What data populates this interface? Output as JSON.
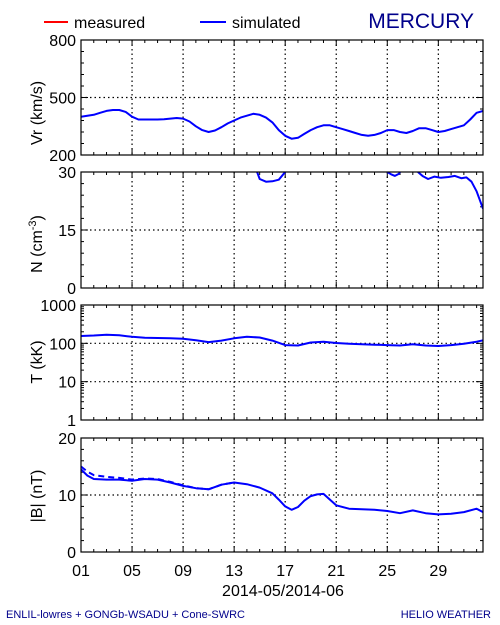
{
  "chart_data": {
    "type": "line",
    "planet_title": "MERCURY",
    "legend": [
      {
        "label": "measured",
        "color": "#ff0000"
      },
      {
        "label": "simulated",
        "color": "#0000ff"
      }
    ],
    "x_tick_labels": [
      "01",
      "05",
      "09",
      "13",
      "17",
      "21",
      "25",
      "29"
    ],
    "x_axis_label": "2014-05/2014-06",
    "x_range_days": [
      1,
      32.5
    ],
    "footer_left": "ENLIL-lowres + GONGb-WSADU + Cone-SWRC",
    "footer_right": "HELIO  WEATHER",
    "panels": [
      {
        "ylabel": "Vr (km/s)",
        "ylim": [
          200,
          800
        ],
        "yscale": "linear",
        "yticks": [
          "200",
          "500",
          "800"
        ],
        "ytick_values": [
          200,
          500,
          800
        ],
        "gridlines": [
          500
        ],
        "series": [
          {
            "color": "#0000ff",
            "style": "solid",
            "x": [
              1.0,
              1.5,
              2.0,
              2.5,
              3.0,
              3.5,
              4.0,
              4.5,
              5.0,
              5.5,
              6.0,
              6.5,
              7.0,
              7.5,
              8.0,
              8.5,
              9.0,
              9.5,
              10.0,
              10.5,
              11.0,
              11.5,
              12.0,
              12.5,
              13.0,
              13.5,
              14.0,
              14.5,
              15.0,
              15.5,
              16.0,
              16.5,
              17.0,
              17.5,
              18.0,
              18.5,
              19.0,
              19.5,
              20.0,
              20.5,
              21.0,
              21.5,
              22.0,
              22.5,
              23.0,
              23.5,
              24.0,
              24.5,
              25.0,
              25.5,
              26.0,
              26.5,
              27.0,
              27.5,
              28.0,
              28.5,
              29.0,
              29.5,
              30.0,
              30.5,
              31.0,
              31.5,
              32.0,
              32.5
            ],
            "y": [
              400,
              405,
              410,
              420,
              430,
              435,
              435,
              425,
              400,
              385,
              385,
              385,
              385,
              387,
              390,
              393,
              390,
              375,
              350,
              330,
              320,
              328,
              345,
              365,
              380,
              395,
              405,
              415,
              410,
              395,
              370,
              330,
              300,
              285,
              290,
              310,
              330,
              345,
              355,
              355,
              345,
              335,
              325,
              315,
              305,
              300,
              305,
              315,
              330,
              330,
              320,
              315,
              325,
              340,
              340,
              330,
              320,
              325,
              335,
              345,
              355,
              385,
              420,
              430
            ]
          }
        ]
      },
      {
        "ylabel": "N (cm-3)",
        "ylabel_base": "N (cm",
        "ylabel_sup": "-3",
        "ylabel_tail": ")",
        "ylim": [
          0,
          30
        ],
        "yscale": "linear",
        "yticks": [
          "0",
          "15",
          "30"
        ],
        "ytick_values": [
          0,
          15,
          30
        ],
        "gridlines": [
          15
        ],
        "series": [
          {
            "color": "#0000ff",
            "style": "solid",
            "x": [
              14.8,
              15.0,
              15.5,
              16.0,
              16.5,
              17.0
            ],
            "y": [
              30,
              28.2,
              27.5,
              27.6,
              28.0,
              30
            ]
          },
          {
            "color": "#0000ff",
            "style": "solid",
            "x": [
              25.0,
              25.3,
              25.6,
              25.9,
              26.0
            ],
            "y": [
              30,
              29.4,
              29.0,
              29.5,
              30
            ]
          },
          {
            "color": "#0000ff",
            "style": "solid",
            "x": [
              27.4,
              27.8,
              28.2,
              28.7,
              29.2,
              29.8,
              30.3,
              30.8,
              31.2,
              31.6,
              32.0,
              32.5
            ],
            "y": [
              30,
              28.9,
              28.2,
              28.8,
              28.5,
              28.7,
              29.0,
              28.4,
              28.6,
              27.5,
              25.0,
              20.5
            ]
          }
        ]
      },
      {
        "ylabel": "T (kK)",
        "ylim": [
          1,
          1000
        ],
        "yscale": "log",
        "yticks": [
          "1",
          "10",
          "100",
          "1000"
        ],
        "ytick_values": [
          1,
          10,
          100,
          1000
        ],
        "gridlines": [
          10,
          100
        ],
        "series": [
          {
            "color": "#0000ff",
            "style": "solid",
            "x": [
              1.0,
              2.0,
              3.0,
              4.0,
              5.0,
              6.0,
              7.0,
              8.0,
              9.0,
              10.0,
              11.0,
              12.0,
              13.0,
              14.0,
              15.0,
              16.0,
              17.0,
              18.0,
              19.0,
              20.0,
              21.0,
              22.0,
              23.0,
              24.0,
              25.0,
              26.0,
              27.0,
              28.0,
              29.0,
              30.0,
              31.0,
              32.0,
              32.5
            ],
            "y": [
              155,
              160,
              168,
              162,
              148,
              140,
              138,
              136,
              132,
              120,
              108,
              118,
              135,
              148,
              142,
              118,
              90,
              88,
              105,
              110,
              102,
              98,
              95,
              92,
              90,
              88,
              95,
              88,
              85,
              90,
              98,
              110,
              120
            ]
          }
        ]
      },
      {
        "ylabel": "|B| (nT)",
        "ylim": [
          0,
          20
        ],
        "yscale": "linear",
        "yticks": [
          "0",
          "10",
          "20"
        ],
        "ytick_values": [
          0,
          10,
          20
        ],
        "gridlines": [
          10
        ],
        "series": [
          {
            "color": "#0000ff",
            "style": "solid",
            "x": [
              1.0,
              1.5,
              2.0,
              3.0,
              4.0,
              5.0,
              6.0,
              7.0,
              8.0,
              9.0,
              10.0,
              11.0,
              12.0,
              13.0,
              14.0,
              15.0,
              16.0,
              16.5,
              17.0,
              17.5,
              18.0,
              18.5,
              19.0,
              19.5,
              20.0,
              20.5,
              21.0,
              22.0,
              23.0,
              24.0,
              25.0,
              26.0,
              27.0,
              28.0,
              29.0,
              30.0,
              31.0,
              32.0,
              32.5
            ],
            "y": [
              14.5,
              13.4,
              12.8,
              12.7,
              12.7,
              12.5,
              12.8,
              12.7,
              12.2,
              11.6,
              11.2,
              11.0,
              11.8,
              12.2,
              11.9,
              11.3,
              10.3,
              9.2,
              8.0,
              7.4,
              7.9,
              9.0,
              9.8,
              10.1,
              10.2,
              9.2,
              8.2,
              7.6,
              7.5,
              7.4,
              7.2,
              6.8,
              7.3,
              6.8,
              6.6,
              6.7,
              7.0,
              7.6,
              7.0
            ]
          },
          {
            "color": "#0000ff",
            "style": "dashed",
            "x": [
              1.0,
              1.5,
              2.0,
              3.0,
              4.0,
              5.0,
              6.0,
              7.0,
              8.0,
              9.0,
              10.0,
              11.0,
              12.0,
              13.0
            ],
            "y": [
              15.0,
              14.1,
              13.5,
              13.2,
              13.0,
              12.7,
              12.9,
              12.8,
              12.3,
              11.7,
              11.2,
              11.0,
              11.8,
              12.2
            ]
          }
        ]
      }
    ]
  }
}
